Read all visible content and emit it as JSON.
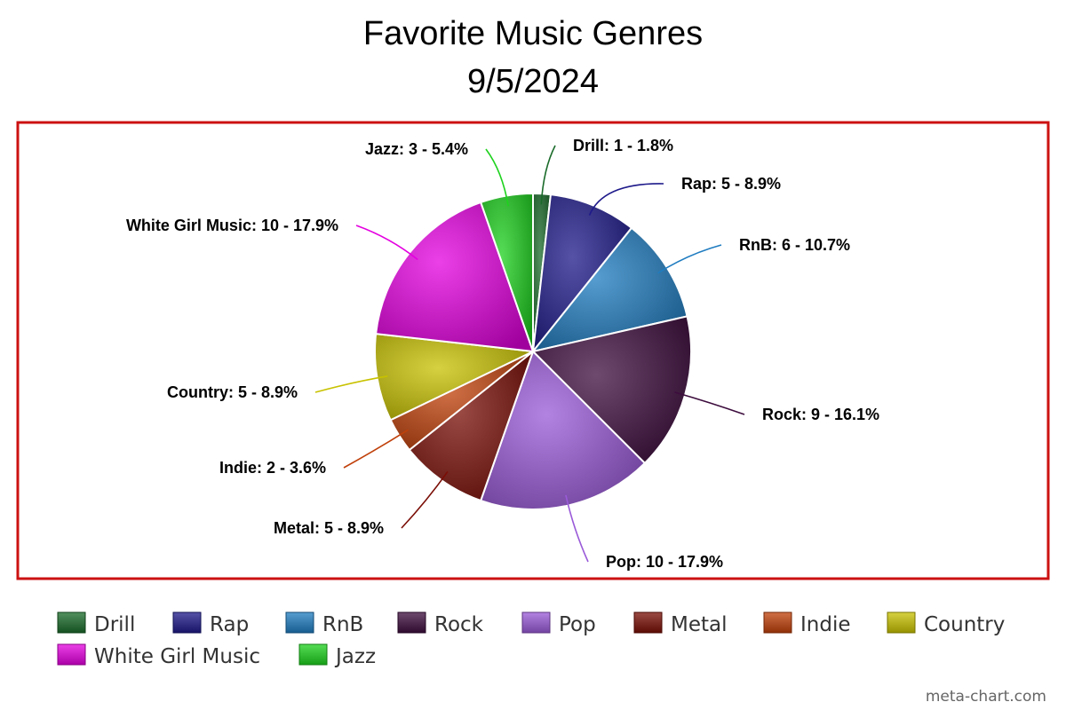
{
  "chart_data": {
    "type": "pie",
    "title": "Favorite Music Genres",
    "subtitle": "9/5/2024",
    "slices": [
      {
        "name": "Drill",
        "value": 1,
        "label": "Drill: 1 - 1.8%",
        "color": "#1a6b2a"
      },
      {
        "name": "Rap",
        "value": 5,
        "label": "Rap: 5 - 8.9%",
        "color": "#1e1a8a"
      },
      {
        "name": "RnB",
        "value": 6,
        "label": "RnB: 6 - 10.7%",
        "color": "#1f7cc0"
      },
      {
        "name": "Rock",
        "value": 9,
        "label": "Rock: 9 - 16.1%",
        "color": "#3d0d3d"
      },
      {
        "name": "Pop",
        "value": 10,
        "label": "Pop: 10 - 17.9%",
        "color": "#9a5ad8"
      },
      {
        "name": "Metal",
        "value": 5,
        "label": "Metal: 5 - 8.9%",
        "color": "#7a0d05"
      },
      {
        "name": "Indie",
        "value": 2,
        "label": "Indie: 2 - 3.6%",
        "color": "#c0400a"
      },
      {
        "name": "Country",
        "value": 5,
        "label": "Country: 5 - 8.9%",
        "color": "#c8c200"
      },
      {
        "name": "White Girl Music",
        "value": 10,
        "label": "White Girl Music: 10 - 17.9%",
        "color": "#e400e0"
      },
      {
        "name": "Jazz",
        "value": 3,
        "label": "Jazz: 3 - 5.4%",
        "color": "#1ed21e"
      }
    ],
    "legend_position": "bottom",
    "frame_color": "#cc1111"
  },
  "footer": {
    "credit": "meta-chart.com"
  }
}
